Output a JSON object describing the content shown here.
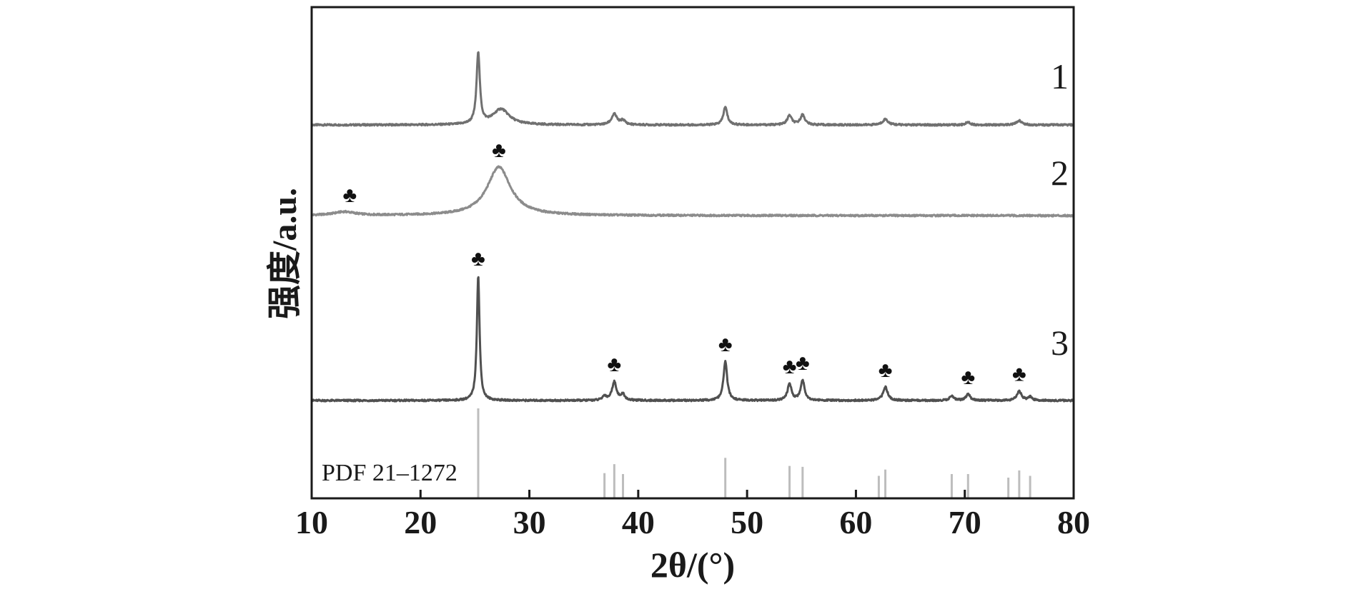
{
  "chart_data": {
    "type": "line",
    "xlabel": "2θ/(°)",
    "ylabel": "强度/a.u.",
    "xlim": [
      10,
      80
    ],
    "xticks": [
      "10",
      "20",
      "30",
      "40",
      "50",
      "60",
      "70",
      "80"
    ],
    "marker_symbol": "♣",
    "reference": {
      "label": "PDF 21–1272",
      "color": "#bdbdbd",
      "lines": [
        {
          "x": 25.3,
          "h": 1.0
        },
        {
          "x": 36.9,
          "h": 0.28
        },
        {
          "x": 37.8,
          "h": 0.38
        },
        {
          "x": 38.6,
          "h": 0.27
        },
        {
          "x": 48.0,
          "h": 0.45
        },
        {
          "x": 53.9,
          "h": 0.36
        },
        {
          "x": 55.1,
          "h": 0.35
        },
        {
          "x": 62.1,
          "h": 0.25
        },
        {
          "x": 62.7,
          "h": 0.32
        },
        {
          "x": 68.8,
          "h": 0.27
        },
        {
          "x": 70.3,
          "h": 0.27
        },
        {
          "x": 74.0,
          "h": 0.23
        },
        {
          "x": 75.0,
          "h": 0.31
        },
        {
          "x": 76.0,
          "h": 0.25
        }
      ]
    },
    "series": [
      {
        "name": "1",
        "color": "#707070",
        "peaks": [
          {
            "x": 25.3,
            "h": 100,
            "w": 0.18
          },
          {
            "x": 27.4,
            "h": 22,
            "w": 0.9
          },
          {
            "x": 37.8,
            "h": 15,
            "w": 0.3
          },
          {
            "x": 38.6,
            "h": 6,
            "w": 0.25
          },
          {
            "x": 48.0,
            "h": 25,
            "w": 0.22
          },
          {
            "x": 53.9,
            "h": 13,
            "w": 0.25
          },
          {
            "x": 55.1,
            "h": 14,
            "w": 0.25
          },
          {
            "x": 62.7,
            "h": 8,
            "w": 0.3
          },
          {
            "x": 70.3,
            "h": 4,
            "w": 0.25
          },
          {
            "x": 75.0,
            "h": 6,
            "w": 0.3
          }
        ],
        "markers": []
      },
      {
        "name": "2",
        "color": "#8c8c8c",
        "peaks": [
          {
            "x": 13.0,
            "h": 5,
            "w": 1.2
          },
          {
            "x": 27.2,
            "h": 68,
            "w": 1.3
          }
        ],
        "markers": [
          13.5,
          27.2
        ]
      },
      {
        "name": "3",
        "color": "#505050",
        "peaks": [
          {
            "x": 25.3,
            "h": 175,
            "w": 0.15
          },
          {
            "x": 36.9,
            "h": 6,
            "w": 0.2
          },
          {
            "x": 37.8,
            "h": 26,
            "w": 0.25
          },
          {
            "x": 38.6,
            "h": 8,
            "w": 0.2
          },
          {
            "x": 48.0,
            "h": 55,
            "w": 0.2
          },
          {
            "x": 53.9,
            "h": 23,
            "w": 0.22
          },
          {
            "x": 55.1,
            "h": 28,
            "w": 0.22
          },
          {
            "x": 62.7,
            "h": 19,
            "w": 0.25
          },
          {
            "x": 68.8,
            "h": 7,
            "w": 0.22
          },
          {
            "x": 70.3,
            "h": 9,
            "w": 0.22
          },
          {
            "x": 75.0,
            "h": 13,
            "w": 0.25
          },
          {
            "x": 76.0,
            "h": 5,
            "w": 0.22
          }
        ],
        "markers": [
          25.3,
          37.8,
          48.0,
          53.9,
          55.1,
          62.7,
          70.3,
          75.0
        ]
      }
    ]
  }
}
